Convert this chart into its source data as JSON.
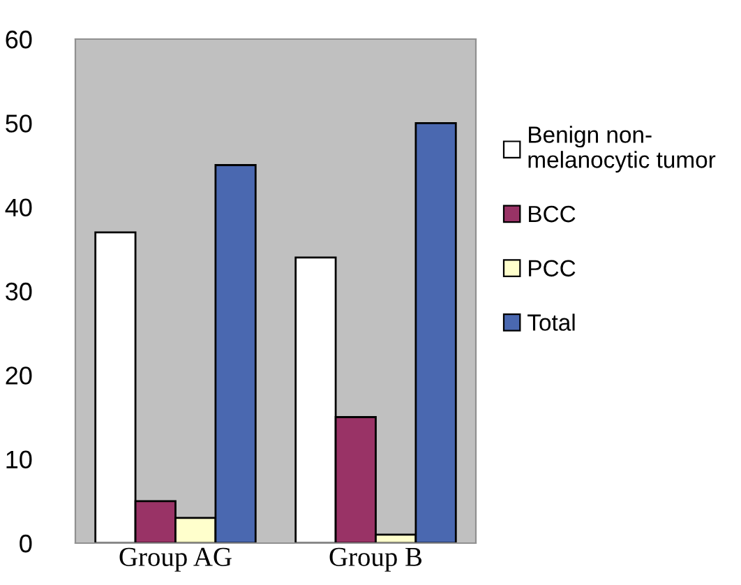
{
  "chart_data": {
    "type": "bar",
    "categories": [
      "Group AG",
      "Group B"
    ],
    "series": [
      {
        "name": "Benign non-\nmelanocytic tumor",
        "color": "#ffffff",
        "values": [
          37,
          34
        ]
      },
      {
        "name": "BCC",
        "color": "#993366",
        "values": [
          5,
          15
        ]
      },
      {
        "name": "PCC",
        "color": "#ffffcc",
        "values": [
          3,
          1
        ]
      },
      {
        "name": "Total",
        "color": "#4a68b0",
        "values": [
          45,
          50
        ]
      }
    ],
    "ylim": [
      0,
      60
    ],
    "yticks": [
      0,
      10,
      20,
      30,
      40,
      50,
      60
    ],
    "grid": false,
    "legend": "right"
  }
}
